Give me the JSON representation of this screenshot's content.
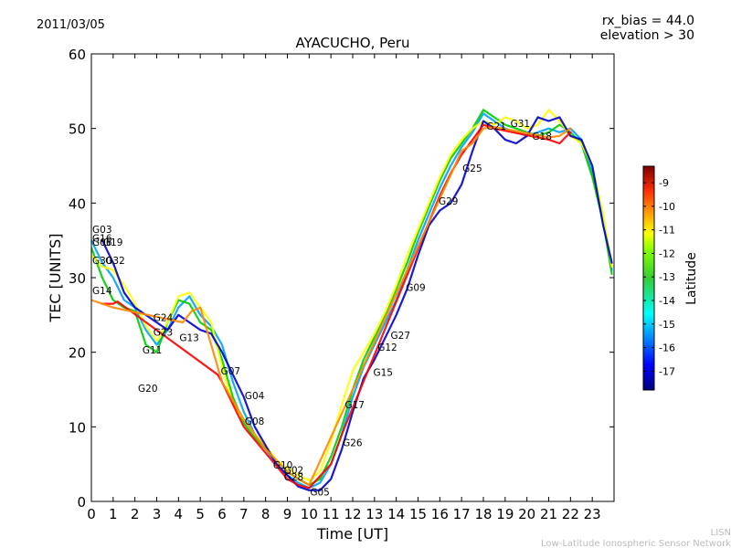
{
  "header": {
    "date": "2011/03/05",
    "rx_bias": "rx_bias = 44.0",
    "elevation": "elevation > 30"
  },
  "footer": {
    "line1": "LISN",
    "line2": "Low-Latitude Ionospheric Sensor Network"
  },
  "colors": {
    "jet": [
      "#00007f",
      "#0000ff",
      "#007fff",
      "#00bfff",
      "#33ff99",
      "#00cc00",
      "#7fff00",
      "#ffff00",
      "#ffbf00",
      "#ff7f00",
      "#ff0000",
      "#7f0000"
    ]
  },
  "chart_data": {
    "type": "scatter",
    "title": "AYACUCHO, Peru",
    "xlabel": "Time [UT]",
    "ylabel": "TEC [UNITS]",
    "xlim": [
      0,
      24
    ],
    "ylim": [
      0,
      60
    ],
    "xticks": [
      "0",
      "1",
      "2",
      "3",
      "4",
      "5",
      "6",
      "7",
      "8",
      "9",
      "10",
      "11",
      "12",
      "13",
      "14",
      "15",
      "16",
      "17",
      "18",
      "19",
      "20",
      "21",
      "22",
      "23"
    ],
    "yticks": [
      "0",
      "10",
      "20",
      "30",
      "40",
      "50",
      "60"
    ],
    "colorbar": {
      "label": "Latitude",
      "range": [
        -17.8,
        -8.3
      ],
      "ticks": [
        "-9",
        "-10",
        "-11",
        "-12",
        "-13",
        "-14",
        "-15",
        "-16",
        "-17"
      ]
    },
    "satellite_labels": [
      {
        "label": "G03",
        "x": 0.0,
        "y": 36.5
      },
      {
        "label": "G16",
        "x": 0.0,
        "y": 35.3
      },
      {
        "label": "G06",
        "x": 0.0,
        "y": 34.8
      },
      {
        "label": "G19",
        "x": 0.5,
        "y": 34.8
      },
      {
        "label": "G30",
        "x": 0.0,
        "y": 32.3
      },
      {
        "label": "G32",
        "x": 0.6,
        "y": 32.3
      },
      {
        "label": "G14",
        "x": 0.0,
        "y": 28.3
      },
      {
        "label": "G24",
        "x": 2.8,
        "y": 24.7
      },
      {
        "label": "G23",
        "x": 2.8,
        "y": 22.7
      },
      {
        "label": "G13",
        "x": 4.0,
        "y": 22.0
      },
      {
        "label": "G11",
        "x": 2.3,
        "y": 20.3
      },
      {
        "label": "G20",
        "x": 2.1,
        "y": 15.2
      },
      {
        "label": "G07",
        "x": 5.9,
        "y": 17.5
      },
      {
        "label": "G04",
        "x": 7.0,
        "y": 14.2
      },
      {
        "label": "G08",
        "x": 7.0,
        "y": 10.8
      },
      {
        "label": "G10",
        "x": 8.3,
        "y": 4.9
      },
      {
        "label": "G02",
        "x": 8.8,
        "y": 4.2
      },
      {
        "label": "G28",
        "x": 8.8,
        "y": 3.3
      },
      {
        "label": "G05",
        "x": 10.0,
        "y": 1.3
      },
      {
        "label": "G26",
        "x": 11.5,
        "y": 7.9
      },
      {
        "label": "G17",
        "x": 11.6,
        "y": 13.0
      },
      {
        "label": "G15",
        "x": 12.9,
        "y": 17.3
      },
      {
        "label": "G12",
        "x": 13.1,
        "y": 20.7
      },
      {
        "label": "G27",
        "x": 13.7,
        "y": 22.3
      },
      {
        "label": "G09",
        "x": 14.4,
        "y": 28.7
      },
      {
        "label": "G29",
        "x": 15.9,
        "y": 40.3
      },
      {
        "label": "G25",
        "x": 17.0,
        "y": 44.7
      },
      {
        "label": "G21",
        "x": 18.1,
        "y": 50.3
      },
      {
        "label": "G31",
        "x": 19.2,
        "y": 50.7
      },
      {
        "label": "G18",
        "x": 20.2,
        "y": 49.0
      }
    ],
    "series": [
      {
        "color": "#00a0ff",
        "points": [
          [
            0,
            35
          ],
          [
            0.5,
            32
          ],
          [
            1,
            30
          ],
          [
            1.5,
            27
          ],
          [
            2,
            26
          ],
          [
            2.5,
            23
          ],
          [
            3,
            21
          ],
          [
            3.5,
            23
          ],
          [
            4,
            26
          ],
          [
            4.5,
            27.5
          ],
          [
            5,
            25
          ],
          [
            5.5,
            23.5
          ],
          [
            6,
            21
          ],
          [
            6.5,
            16
          ],
          [
            7,
            12
          ],
          [
            7.5,
            9
          ],
          [
            8,
            7
          ],
          [
            8.5,
            5
          ],
          [
            9,
            3.5
          ],
          [
            9.5,
            2.5
          ],
          [
            10,
            1.8
          ],
          [
            10.5,
            2.5
          ],
          [
            11,
            5
          ],
          [
            11.5,
            9
          ],
          [
            12,
            14
          ],
          [
            12.5,
            18
          ],
          [
            13,
            21
          ],
          [
            13.5,
            24
          ],
          [
            14,
            27
          ],
          [
            14.5,
            31
          ],
          [
            15,
            35
          ],
          [
            15.5,
            38.5
          ],
          [
            16,
            42
          ],
          [
            16.5,
            45
          ],
          [
            17,
            47.5
          ],
          [
            17.5,
            49.5
          ],
          [
            18,
            52
          ],
          [
            18.5,
            51
          ],
          [
            19,
            50
          ],
          [
            19.5,
            49.5
          ],
          [
            20,
            49
          ],
          [
            20.5,
            49.5
          ],
          [
            21,
            50
          ],
          [
            21.5,
            49.5
          ],
          [
            22,
            50
          ],
          [
            22.5,
            48.5
          ],
          [
            23,
            44
          ],
          [
            23.5,
            38
          ],
          [
            23.9,
            31
          ]
        ]
      },
      {
        "color": "#00cc00",
        "points": [
          [
            0,
            34
          ],
          [
            0.5,
            30
          ],
          [
            1,
            27
          ],
          [
            1.5,
            26
          ],
          [
            2,
            25.5
          ],
          [
            2.5,
            21
          ],
          [
            3,
            20
          ],
          [
            3.5,
            24
          ],
          [
            4,
            27
          ],
          [
            4.5,
            26.5
          ],
          [
            5,
            24
          ],
          [
            5.5,
            23
          ],
          [
            6,
            19
          ],
          [
            6.5,
            14
          ],
          [
            7,
            10.5
          ],
          [
            7.5,
            8.5
          ],
          [
            8,
            7
          ],
          [
            8.5,
            5.5
          ],
          [
            9,
            4
          ],
          [
            9.5,
            3
          ],
          [
            10,
            2.2
          ],
          [
            10.5,
            3
          ],
          [
            11,
            6
          ],
          [
            11.5,
            10
          ],
          [
            12,
            15
          ],
          [
            12.5,
            19
          ],
          [
            13,
            22
          ],
          [
            13.5,
            25
          ],
          [
            14,
            28.5
          ],
          [
            14.5,
            32
          ],
          [
            15,
            36
          ],
          [
            15.5,
            39.5
          ],
          [
            16,
            43
          ],
          [
            16.5,
            46
          ],
          [
            17,
            48
          ],
          [
            17.5,
            50
          ],
          [
            18,
            52.5
          ],
          [
            18.5,
            51.5
          ],
          [
            19,
            50.5
          ],
          [
            19.5,
            50
          ],
          [
            20,
            49.5
          ],
          [
            20.5,
            49
          ],
          [
            21,
            49.5
          ],
          [
            21.5,
            50.5
          ],
          [
            22,
            49.5
          ],
          [
            22.5,
            48
          ],
          [
            23,
            43.5
          ],
          [
            23.5,
            37.5
          ],
          [
            23.9,
            30.5
          ]
        ]
      },
      {
        "color": "#ffff00",
        "points": [
          [
            0,
            33
          ],
          [
            0.5,
            31.5
          ],
          [
            1,
            31
          ],
          [
            1.5,
            29
          ],
          [
            2,
            26.5
          ],
          [
            2.5,
            23.5
          ],
          [
            3,
            21.5
          ],
          [
            3.5,
            24
          ],
          [
            4,
            27.5
          ],
          [
            4.5,
            28
          ],
          [
            5,
            26
          ],
          [
            5.5,
            24
          ],
          [
            6,
            18
          ],
          [
            6.5,
            13
          ],
          [
            7,
            11
          ],
          [
            7.5,
            9
          ],
          [
            8,
            7.5
          ],
          [
            8.5,
            5.5
          ],
          [
            9,
            4.5
          ],
          [
            9.5,
            3.5
          ],
          [
            10,
            2.8
          ],
          [
            10.5,
            4
          ],
          [
            11,
            8
          ],
          [
            11.5,
            13
          ],
          [
            12,
            17.5
          ],
          [
            12.5,
            20
          ],
          [
            13,
            22.5
          ],
          [
            13.5,
            25.5
          ],
          [
            14,
            29
          ],
          [
            14.5,
            33
          ],
          [
            15,
            36.5
          ],
          [
            15.5,
            40
          ],
          [
            16,
            43.5
          ],
          [
            16.5,
            46.5
          ],
          [
            17,
            48.5
          ],
          [
            17.5,
            50
          ],
          [
            18,
            51
          ],
          [
            18.5,
            50.5
          ],
          [
            19,
            51.5
          ],
          [
            19.5,
            51
          ],
          [
            20,
            50
          ],
          [
            20.5,
            50.5
          ],
          [
            21,
            52.5
          ],
          [
            21.5,
            51
          ],
          [
            22,
            49
          ],
          [
            22.5,
            48
          ],
          [
            23,
            45
          ],
          [
            23.5,
            38.5
          ],
          [
            23.9,
            31.5
          ]
        ]
      },
      {
        "color": "#0000cc",
        "points": [
          [
            0.5,
            35
          ],
          [
            1,
            32
          ],
          [
            1.5,
            28
          ],
          [
            2,
            26
          ],
          [
            3,
            24
          ],
          [
            3.5,
            23
          ],
          [
            4,
            25
          ],
          [
            4.5,
            24
          ],
          [
            5,
            23
          ],
          [
            5.5,
            22.5
          ],
          [
            6,
            20
          ],
          [
            6.5,
            17
          ],
          [
            7,
            14
          ],
          [
            7.5,
            10
          ],
          [
            8,
            7.5
          ],
          [
            8.5,
            5
          ],
          [
            9,
            3.5
          ],
          [
            9.5,
            2
          ],
          [
            10,
            1.5
          ],
          [
            10.5,
            1.5
          ],
          [
            11,
            3
          ],
          [
            11.5,
            7
          ],
          [
            12,
            12
          ],
          [
            12.5,
            16.5
          ],
          [
            13,
            19
          ],
          [
            13.5,
            22
          ],
          [
            14,
            25
          ],
          [
            14.5,
            28.5
          ],
          [
            15,
            33
          ],
          [
            15.5,
            37
          ],
          [
            16,
            39
          ],
          [
            16.5,
            40
          ],
          [
            17,
            42.5
          ],
          [
            17.5,
            47
          ],
          [
            18,
            51
          ],
          [
            18.5,
            50
          ],
          [
            19,
            48.5
          ],
          [
            19.5,
            48
          ],
          [
            20,
            49
          ],
          [
            20.5,
            51.5
          ],
          [
            21,
            51
          ],
          [
            21.5,
            51.5
          ],
          [
            22,
            49
          ],
          [
            22.5,
            48.5
          ],
          [
            23,
            45
          ],
          [
            23.5,
            37
          ],
          [
            23.9,
            32
          ]
        ]
      },
      {
        "color": "#ff0000",
        "points": [
          [
            0.5,
            26.5
          ],
          [
            1,
            26.5
          ],
          [
            1.2,
            26.8
          ],
          [
            5.8,
            17
          ],
          [
            6,
            16
          ],
          [
            6.5,
            13
          ],
          [
            7,
            10
          ],
          [
            9,
            3
          ],
          [
            9.5,
            2.2
          ],
          [
            10,
            1.8
          ],
          [
            11,
            5
          ],
          [
            11.5,
            9
          ],
          [
            16,
            41
          ],
          [
            16.5,
            44
          ],
          [
            17,
            46.5
          ],
          [
            18,
            50.5
          ],
          [
            18.5,
            50
          ],
          [
            21,
            48.5
          ],
          [
            21.5,
            48
          ],
          [
            22,
            49.5
          ]
        ]
      },
      {
        "color": "#ff8800",
        "points": [
          [
            0,
            27
          ],
          [
            0.5,
            26.5
          ],
          [
            1,
            26
          ],
          [
            4.2,
            24
          ],
          [
            4.6,
            25.5
          ],
          [
            5,
            26
          ],
          [
            6,
            16
          ],
          [
            7,
            11
          ],
          [
            8,
            7
          ],
          [
            9,
            4
          ],
          [
            9.5,
            3
          ],
          [
            10,
            2.2
          ],
          [
            17,
            47
          ],
          [
            17.5,
            48
          ],
          [
            18,
            50
          ],
          [
            18.5,
            50.2
          ],
          [
            21,
            48.8
          ],
          [
            21.5,
            49
          ],
          [
            22,
            50
          ]
        ]
      }
    ]
  }
}
